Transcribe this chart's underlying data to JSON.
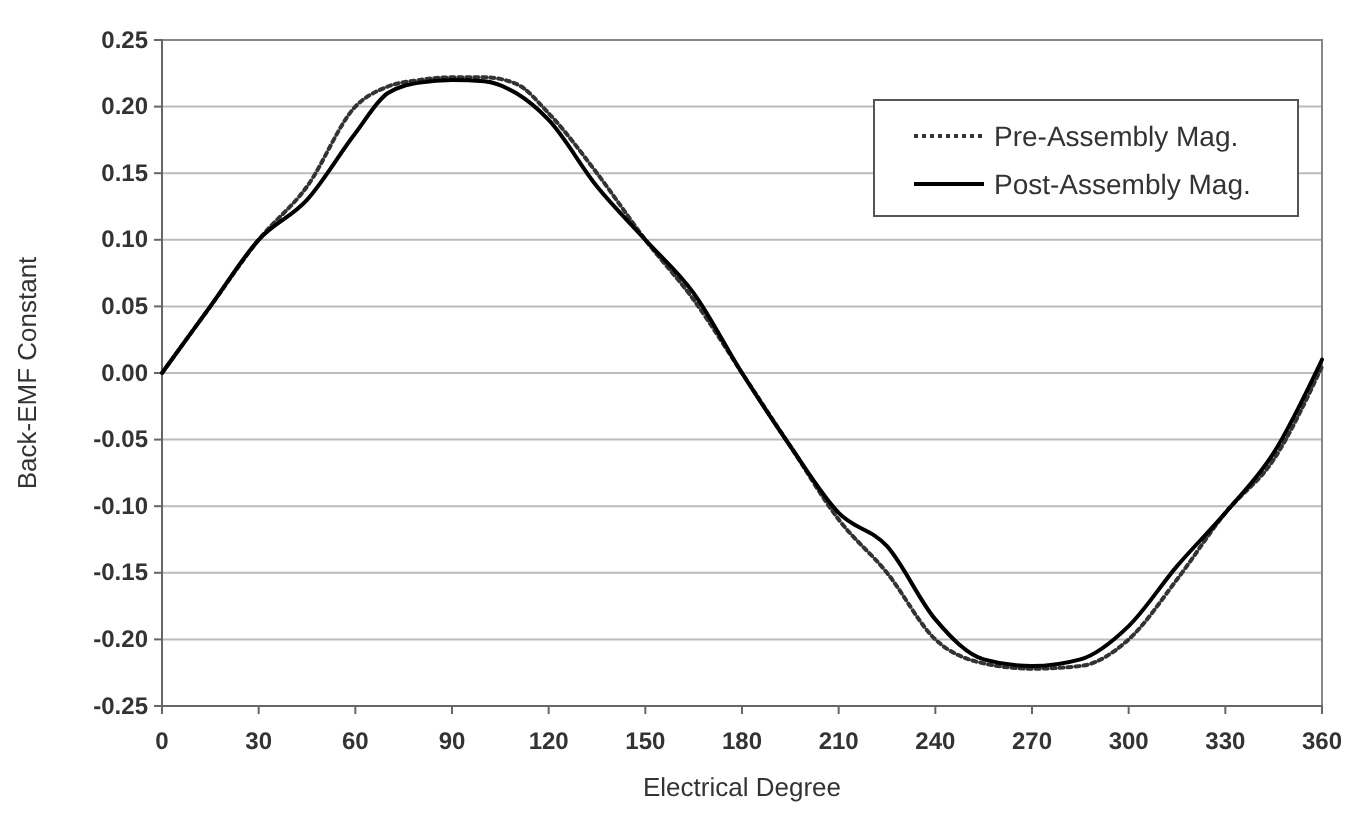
{
  "chart_data": {
    "type": "line",
    "xlabel": "Electrical Degree",
    "ylabel": "Back-EMF Constant",
    "xlim": [
      0,
      360
    ],
    "xticks": [
      0,
      30,
      60,
      90,
      120,
      150,
      180,
      210,
      240,
      270,
      300,
      330,
      360
    ],
    "ylim": [
      -0.25,
      0.25
    ],
    "yticks": [
      {
        "value": -0.25,
        "label": "-0.25"
      },
      {
        "value": -0.2,
        "label": "-0.20"
      },
      {
        "value": -0.15,
        "label": "-0.15"
      },
      {
        "value": -0.1,
        "label": "-0.10"
      },
      {
        "value": -0.05,
        "label": "-0.05"
      },
      {
        "value": 0,
        "label": "0.00"
      },
      {
        "value": 0.05,
        "label": "0.05"
      },
      {
        "value": 0.1,
        "label": "0.10"
      },
      {
        "value": 0.15,
        "label": "0.15"
      },
      {
        "value": 0.2,
        "label": "0.20"
      },
      {
        "value": 0.25,
        "label": "0.25"
      }
    ],
    "grid": "y",
    "legend": "top right",
    "marker": "none",
    "x": [
      0,
      15,
      30,
      45,
      60,
      70,
      80,
      90,
      100,
      110,
      120,
      135,
      150,
      165,
      180,
      195,
      210,
      225,
      240,
      255,
      270,
      285,
      300,
      315,
      330,
      345,
      360
    ],
    "series": [
      {
        "name": "Pre-Assembly Mag.",
        "color": "#333333",
        "line_style": "dotted",
        "values": [
          0,
          0.05,
          0.1,
          0.14,
          0.2,
          0.215,
          0.22,
          0.222,
          0.222,
          0.217,
          0.195,
          0.15,
          0.1,
          0.055,
          0,
          -0.055,
          -0.11,
          -0.15,
          -0.2,
          -0.218,
          -0.222,
          -0.22,
          -0.2,
          -0.155,
          -0.105,
          -0.065,
          0.005
        ]
      },
      {
        "name": "Post-Assembly Mag.",
        "color": "#000000",
        "line_style": "solid",
        "values": [
          0,
          0.05,
          0.1,
          0.13,
          0.18,
          0.21,
          0.218,
          0.22,
          0.219,
          0.21,
          0.19,
          0.14,
          0.1,
          0.06,
          0,
          -0.055,
          -0.105,
          -0.13,
          -0.185,
          -0.215,
          -0.22,
          -0.215,
          -0.19,
          -0.145,
          -0.105,
          -0.06,
          0.01
        ]
      }
    ]
  }
}
